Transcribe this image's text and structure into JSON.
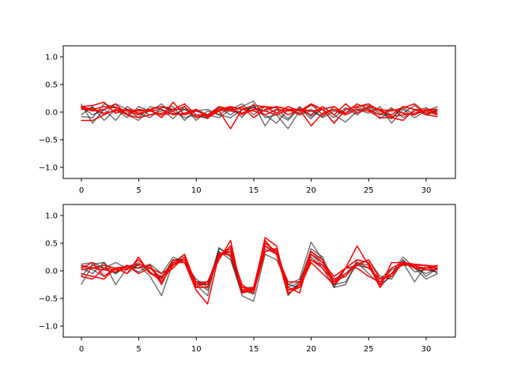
{
  "figure": {
    "background": "#ffffff"
  },
  "chart_data": [
    {
      "type": "line",
      "title": "",
      "xlabel": "",
      "ylabel": "",
      "xlim": [
        -1.55,
        32.55
      ],
      "ylim": [
        -1.2,
        1.2
      ],
      "xticks": [
        0,
        5,
        10,
        15,
        20,
        25,
        30
      ],
      "xtick_labels": [
        "0",
        "5",
        "10",
        "15",
        "20",
        "25",
        "30"
      ],
      "yticks": [
        -1.0,
        -0.5,
        0.0,
        0.5,
        1.0
      ],
      "ytick_labels": [
        "−1.0",
        "−0.5",
        "0.0",
        "0.5",
        "1.0"
      ],
      "grid": false,
      "legend": "none",
      "x": [
        0,
        1,
        2,
        3,
        4,
        5,
        6,
        7,
        8,
        9,
        10,
        11,
        12,
        13,
        14,
        15,
        16,
        17,
        18,
        19,
        20,
        21,
        22,
        23,
        24,
        25,
        26,
        27,
        28,
        29,
        30,
        31
      ],
      "series": [
        {
          "color": "#000000",
          "alpha": 0.55,
          "values": [
            0.15,
            -0.2,
            0.05,
            0.1,
            -0.05,
            -0.15,
            0.05,
            0.1,
            0.02,
            -0.1,
            -0.05,
            -0.12,
            0.08,
            -0.05,
            0.1,
            0.2,
            -0.1,
            -0.05,
            -0.3,
            0.02,
            0.12,
            0.05,
            -0.2,
            0.05,
            0.1,
            0.12,
            0.02,
            -0.1,
            0.08,
            -0.05,
            0.05,
            0.02
          ]
        },
        {
          "color": "#000000",
          "alpha": 0.55,
          "values": [
            0.05,
            0.08,
            -0.05,
            0.15,
            0.05,
            -0.1,
            0.1,
            0.05,
            -0.12,
            0.1,
            -0.15,
            0.02,
            -0.05,
            0.1,
            -0.1,
            0.15,
            -0.25,
            0.05,
            -0.12,
            0.1,
            -0.08,
            0.05,
            -0.1,
            0.08,
            -0.05,
            0.1,
            -0.02,
            -0.12,
            0.1,
            0.05,
            -0.05,
            0.02
          ]
        },
        {
          "color": "#000000",
          "alpha": 0.55,
          "values": [
            -0.05,
            0.1,
            -0.15,
            0.05,
            -0.1,
            0.1,
            0.02,
            0.15,
            -0.05,
            0.05,
            -0.08,
            -0.1,
            0.1,
            0.02,
            -0.02,
            0.1,
            -0.05,
            -0.2,
            0.05,
            -0.02,
            0.05,
            -0.1,
            0.02,
            -0.05,
            0.05,
            -0.02,
            0.1,
            -0.2,
            0.05,
            -0.1,
            0.02,
            0.1
          ]
        },
        {
          "color": "#000000",
          "alpha": 0.55,
          "values": [
            0.1,
            -0.05,
            0.05,
            -0.15,
            0.1,
            -0.02,
            -0.1,
            0.08,
            0.1,
            -0.15,
            0.05,
            -0.05,
            -0.1,
            0.05,
            0.15,
            -0.05,
            0.1,
            -0.02,
            -0.15,
            0.08,
            -0.12,
            0.1,
            -0.05,
            -0.18,
            0.02,
            0.08,
            -0.12,
            0.05,
            -0.02,
            0.12,
            -0.05,
            0.05
          ]
        },
        {
          "color": "#000000",
          "alpha": 0.55,
          "values": [
            -0.08,
            -0.1,
            0.15,
            0.08,
            -0.02,
            0.05,
            -0.05,
            0.02,
            0.05,
            0.05,
            0.02,
            0.05,
            -0.05,
            -0.1,
            0.05,
            0.08,
            0.02,
            0.1,
            0.05,
            -0.05,
            0.02,
            -0.08,
            0.1,
            -0.02,
            0.08,
            0.05,
            -0.05,
            0.08,
            -0.1,
            0.02,
            0.08,
            -0.05
          ]
        },
        {
          "color": "#ff0000",
          "alpha": 1.0,
          "values": [
            0.1,
            0.12,
            0.18,
            -0.02,
            0.05,
            0.02,
            0.05,
            -0.1,
            0.18,
            -0.05,
            0.05,
            -0.1,
            0.02,
            -0.3,
            0.05,
            0.12,
            0.1,
            -0.02,
            0.1,
            0.02,
            0.15,
            0.05,
            -0.2,
            0.05,
            0.1,
            0.15,
            0.02,
            -0.05,
            0.1,
            0.05,
            0.02,
            -0.05
          ]
        },
        {
          "color": "#ff0000",
          "alpha": 1.0,
          "values": [
            -0.15,
            -0.15,
            -0.05,
            0.05,
            -0.05,
            -0.1,
            -0.05,
            -0.02,
            0.02,
            0.1,
            -0.1,
            -0.05,
            0.05,
            0.1,
            0.05,
            0.02,
            -0.05,
            0.05,
            0.02,
            0.05,
            0.02,
            0.05,
            0.1,
            -0.05,
            0.05,
            0.02,
            -0.1,
            -0.1,
            -0.15,
            0.05,
            -0.05,
            -0.08
          ]
        },
        {
          "color": "#ff0000",
          "alpha": 1.0,
          "values": [
            0.05,
            0.05,
            0.1,
            0.08,
            0.02,
            -0.05,
            0.05,
            0.1,
            0.05,
            0.15,
            -0.05,
            -0.05,
            0.1,
            0.05,
            -0.02,
            0.05,
            0.1,
            0.08,
            -0.05,
            0.05,
            -0.05,
            0.1,
            -0.05,
            0.15,
            -0.02,
            0.1,
            0.05,
            0.02,
            0.08,
            0.15,
            -0.02,
            0.02
          ]
        },
        {
          "color": "#ff0000",
          "alpha": 1.0,
          "values": [
            0.08,
            0.02,
            0.05,
            0.15,
            -0.05,
            0.05,
            0.02,
            0.05,
            -0.05,
            -0.02,
            0.05,
            -0.08,
            0.05,
            0.02,
            0.1,
            -0.1,
            0.05,
            0.1,
            0.05,
            -0.05,
            0.15,
            -0.05,
            0.05,
            -0.02,
            0.15,
            0.05,
            -0.05,
            0.05,
            -0.02,
            -0.05,
            0.05,
            0.05
          ]
        },
        {
          "color": "#ff0000",
          "alpha": 1.0,
          "values": [
            0.1,
            0.05,
            -0.02,
            0.02,
            0.05,
            -0.02,
            0.02,
            -0.05,
            -0.02,
            -0.05,
            0.02,
            -0.05,
            0.02,
            0.08,
            -0.05,
            0.05,
            0.02,
            -0.05,
            0.05,
            0.05,
            -0.25,
            -0.02,
            0.05,
            -0.05,
            0.05,
            0.02,
            0.05,
            -0.08,
            -0.05,
            -0.02,
            0.05,
            -0.02
          ]
        }
      ]
    },
    {
      "type": "line",
      "title": "",
      "xlabel": "",
      "ylabel": "",
      "xlim": [
        -1.55,
        32.55
      ],
      "ylim": [
        -1.2,
        1.2
      ],
      "xticks": [
        0,
        5,
        10,
        15,
        20,
        25,
        30
      ],
      "xtick_labels": [
        "0",
        "5",
        "10",
        "15",
        "20",
        "25",
        "30"
      ],
      "yticks": [
        -1.0,
        -0.5,
        0.0,
        0.5,
        1.0
      ],
      "ytick_labels": [
        "−1.0",
        "−0.5",
        "0.0",
        "0.5",
        "1.0"
      ],
      "grid": false,
      "legend": "none",
      "x": [
        0,
        1,
        2,
        3,
        4,
        5,
        6,
        7,
        8,
        9,
        10,
        11,
        12,
        13,
        14,
        15,
        16,
        17,
        18,
        19,
        20,
        21,
        22,
        23,
        24,
        25,
        26,
        27,
        28,
        29,
        30,
        31
      ],
      "series": [
        {
          "color": "#000000",
          "alpha": 0.55,
          "values": [
            0.12,
            0.15,
            0.05,
            0.15,
            0.05,
            0.1,
            -0.1,
            -0.45,
            0.15,
            0.3,
            -0.25,
            -0.45,
            0.42,
            0.25,
            -0.45,
            -0.55,
            0.3,
            0.2,
            -0.25,
            -0.15,
            0.52,
            0.2,
            -0.3,
            -0.25,
            0.2,
            0.15,
            -0.3,
            -0.05,
            0.25,
            0.05,
            -0.05,
            0.05
          ]
        },
        {
          "color": "#000000",
          "alpha": 0.55,
          "values": [
            -0.25,
            0.1,
            0.05,
            -0.05,
            0.1,
            0.05,
            0.12,
            -0.05,
            0.25,
            0.15,
            -0.15,
            -0.3,
            0.35,
            0.2,
            -0.4,
            -0.35,
            0.35,
            0.4,
            -0.3,
            -0.2,
            0.3,
            0.1,
            -0.15,
            -0.05,
            0.15,
            0.1,
            -0.2,
            0.02,
            0.1,
            0.1,
            -0.1,
            0.05
          ]
        },
        {
          "color": "#000000",
          "alpha": 0.55,
          "values": [
            0.05,
            -0.05,
            0.15,
            -0.25,
            0.05,
            0.15,
            -0.05,
            -0.15,
            0.2,
            0.2,
            -0.2,
            -0.35,
            0.3,
            0.35,
            -0.35,
            -0.4,
            0.4,
            0.3,
            -0.35,
            -0.25,
            0.4,
            0.25,
            -0.2,
            -0.1,
            0.15,
            -0.05,
            -0.25,
            -0.1,
            0.2,
            -0.02,
            0.02,
            -0.02
          ]
        },
        {
          "color": "#000000",
          "alpha": 0.55,
          "values": [
            -0.1,
            0.12,
            0.15,
            -0.05,
            0.1,
            -0.02,
            0.1,
            -0.2,
            0.1,
            0.25,
            -0.25,
            -0.25,
            0.4,
            0.3,
            -0.3,
            -0.3,
            0.45,
            0.35,
            -0.25,
            -0.3,
            0.25,
            0.05,
            -0.3,
            0.05,
            0.1,
            0.05,
            -0.15,
            0.05,
            0.15,
            -0.2,
            0.1,
            -0.05
          ]
        },
        {
          "color": "#000000",
          "alpha": 0.55,
          "values": [
            0.08,
            0.02,
            -0.1,
            0.05,
            -0.05,
            0.12,
            0.05,
            -0.12,
            0.2,
            0.15,
            -0.2,
            -0.2,
            0.25,
            0.4,
            -0.35,
            -0.42,
            0.5,
            0.35,
            -0.45,
            -0.2,
            0.35,
            0.15,
            -0.25,
            -0.2,
            0.12,
            0.2,
            -0.1,
            -0.15,
            0.18,
            0.05,
            -0.15,
            -0.05
          ]
        },
        {
          "color": "#ff0000",
          "alpha": 1.0,
          "values": [
            0.05,
            0.15,
            -0.1,
            0.05,
            -0.05,
            0.25,
            -0.05,
            -0.1,
            0.05,
            0.25,
            -0.3,
            -0.2,
            0.2,
            0.55,
            -0.4,
            -0.35,
            0.6,
            0.45,
            -0.4,
            -0.3,
            0.15,
            -0.05,
            -0.25,
            0.05,
            0.45,
            0.1,
            -0.3,
            0.15,
            0.15,
            0.1,
            0.1,
            0.05
          ]
        },
        {
          "color": "#ff0000",
          "alpha": 1.0,
          "values": [
            -0.05,
            -0.1,
            -0.15,
            0.05,
            0.05,
            0.05,
            0.1,
            -0.25,
            0.2,
            0.15,
            -0.35,
            -0.6,
            0.3,
            0.4,
            -0.3,
            -0.35,
            0.45,
            0.3,
            -0.2,
            -0.2,
            0.2,
            0.05,
            -0.2,
            0.05,
            0.2,
            0.15,
            -0.25,
            0.05,
            0.15,
            0.05,
            0.02,
            0.02
          ]
        },
        {
          "color": "#ff0000",
          "alpha": 1.0,
          "values": [
            0.02,
            0.05,
            0.02,
            -0.02,
            0.1,
            -0.05,
            0.05,
            -0.05,
            0.1,
            0.3,
            -0.25,
            -0.2,
            0.28,
            0.35,
            -0.25,
            -0.4,
            0.35,
            0.4,
            -0.35,
            -0.3,
            0.2,
            0.1,
            -0.15,
            -0.1,
            0.15,
            0.05,
            -0.15,
            -0.05,
            0.15,
            0.05,
            0.05,
            0.1
          ]
        },
        {
          "color": "#ff0000",
          "alpha": 1.0,
          "values": [
            0.1,
            0.05,
            0.1,
            0.05,
            0.08,
            0.12,
            0.05,
            -0.15,
            0.15,
            0.15,
            -0.3,
            -0.3,
            0.32,
            0.28,
            -0.38,
            -0.32,
            0.5,
            0.35,
            -0.3,
            -0.4,
            0.3,
            0.15,
            -0.1,
            0.05,
            0.05,
            -0.1,
            -0.2,
            -0.05,
            0.12,
            0.08,
            0.05,
            0.05
          ]
        },
        {
          "color": "#ff0000",
          "alpha": 1.0,
          "values": [
            -0.1,
            -0.15,
            0.05,
            0.02,
            0.02,
            0.2,
            -0.02,
            -0.2,
            0.1,
            0.2,
            -0.2,
            -0.25,
            0.25,
            0.45,
            -0.35,
            -0.3,
            0.55,
            0.3,
            -0.42,
            -0.25,
            0.35,
            0.2,
            -0.25,
            -0.05,
            0.1,
            0.2,
            -0.15,
            -0.1,
            0.15,
            0.12,
            0.1,
            0.08
          ]
        }
      ]
    }
  ]
}
